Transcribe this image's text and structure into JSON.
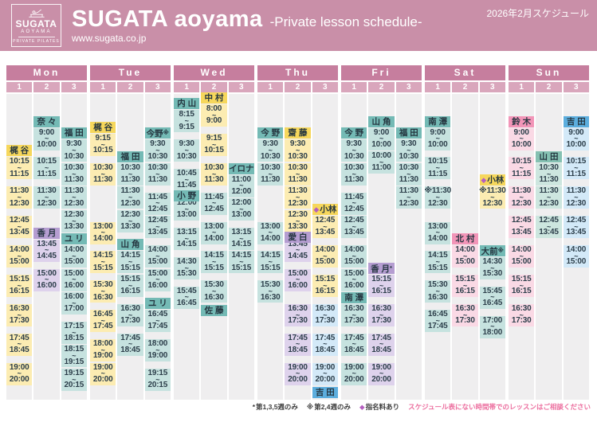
{
  "header": {
    "logo": {
      "brand": "SUGATA",
      "sub": "AOYAMA",
      "tagline": "PRIVATE PILATES"
    },
    "title": "SUGATA aoyama",
    "subtitle": "-Private lesson schedule-",
    "url": "www.sugata.co.jp",
    "period": "2026年2月スケジュール"
  },
  "slot_labels": [
    "1",
    "2",
    "3"
  ],
  "palette": {
    "banner_bg": "#c98fa8",
    "day_header_bg": "#c67e9e",
    "slot_header_bg": "#d9a6bc",
    "column_bg": "#efeeef",
    "time_text": "#2c3e4a",
    "name_text": "#253640",
    "diamond": "#b55fc0",
    "note_pink": "#ec6f9f",
    "groups": {
      "yellow": {
        "header": "#f6d75c",
        "block": "#fcecb2"
      },
      "teal": {
        "header": "#74bab5",
        "block": "#c6e2df"
      },
      "purple": {
        "header": "#b59dd1",
        "block": "#ded2ec"
      },
      "pink": {
        "header": "#f295b8",
        "block": "#fad9e5"
      },
      "blue": {
        "header": "#5caede",
        "block": "#d3e9f8"
      },
      "green": {
        "header": "#85c1b2",
        "block": "#cde6df"
      }
    }
  },
  "days": [
    {
      "label": "Mon",
      "cols": [
        [
          {
            "name": "梶 谷",
            "color": "yellow",
            "blocks": [
              [
                "10:15",
                "11:15"
              ],
              [
                "11:30",
                "12:30"
              ],
              [
                "12:45",
                "13:45"
              ],
              [
                "14:00",
                "15:00"
              ],
              [
                "15:15",
                "16:15"
              ],
              [
                "16:30",
                "17:30"
              ],
              [
                "17:45",
                "18:45"
              ],
              [
                "19:00",
                "20:00"
              ]
            ]
          }
        ],
        [
          {
            "name": "奈 々",
            "color": "teal",
            "blocks": [
              [
                "9:00",
                "10:00"
              ],
              [
                "10:15",
                "11:15"
              ],
              [
                "11:30",
                "12:30"
              ]
            ]
          },
          {
            "name": "香 月",
            "color": "purple",
            "blocks": [
              [
                "13:45",
                "14:45"
              ],
              [
                "15:00",
                "16:00"
              ]
            ]
          }
        ],
        [
          {
            "name": "福 田",
            "color": "teal",
            "blocks": [
              [
                "9:30",
                "10:30"
              ],
              [
                "10:30",
                "11:30"
              ],
              [
                "11:30",
                "12:30"
              ],
              [
                "12:30",
                "13:30"
              ]
            ]
          },
          {
            "name": "ユ リ",
            "color": "teal",
            "blocks": [
              [
                "14:00",
                "15:00"
              ],
              [
                "15:00",
                "16:00"
              ],
              [
                "16:00",
                "17:00"
              ],
              [
                "17:15",
                "18:15"
              ],
              [
                "18:15",
                "19:15"
              ],
              [
                "19:15",
                "20:15"
              ]
            ]
          }
        ]
      ]
    },
    {
      "label": "Tue",
      "cols": [
        [
          {
            "name": "梶 谷",
            "color": "yellow",
            "blocks": [
              [
                "9:15",
                "10:15"
              ],
              [
                "10:30",
                "11:30"
              ],
              [
                "13:00",
                "14:00"
              ],
              [
                "14:15",
                "15:15"
              ],
              [
                "15:30",
                "16:30"
              ],
              [
                "16:45",
                "17:45"
              ],
              [
                "18:00",
                "19:00"
              ],
              [
                "19:00",
                "20:00"
              ]
            ]
          }
        ],
        [
          {
            "name": "福 田",
            "color": "teal",
            "blocks": [
              [
                "10:30",
                "11:30"
              ],
              [
                "11:30",
                "12:30"
              ],
              [
                "12:30",
                "13:30"
              ]
            ]
          },
          {
            "name": "山 角",
            "color": "teal",
            "blocks": [
              [
                "14:15",
                "15:15"
              ],
              [
                "15:15",
                "16:15"
              ],
              [
                "16:30",
                "17:30"
              ],
              [
                "17:45",
                "18:45"
              ]
            ]
          }
        ],
        [
          {
            "name": "今野",
            "suffix": "※",
            "color": "teal",
            "blocks": [
              [
                "9:30",
                "10:30"
              ],
              [
                "10:30",
                "11:30"
              ],
              [
                "11:45",
                "12:45"
              ],
              [
                "12:45",
                "13:45"
              ],
              [
                "14:00",
                "15:00"
              ],
              [
                "15:00",
                "16:00"
              ]
            ]
          },
          {
            "name": "ユ リ",
            "color": "teal",
            "blocks": [
              [
                "16:45",
                "17:45"
              ],
              [
                "18:00",
                "19:00"
              ],
              [
                "19:15",
                "20:15"
              ]
            ]
          }
        ]
      ]
    },
    {
      "label": "Wed",
      "cols": [
        [
          {
            "name": "内 山",
            "color": "teal",
            "blocks": [
              [
                "8:15",
                "9:15"
              ],
              [
                "9:30",
                "10:30"
              ],
              [
                "10:45",
                "11:45"
              ]
            ]
          },
          {
            "name": "小 野",
            "color": "teal",
            "blocks": [
              [
                "12:00",
                "13:00"
              ],
              [
                "13:15",
                "14:15"
              ],
              [
                "14:30",
                "15:30"
              ],
              [
                "15:45",
                "16:45"
              ]
            ]
          }
        ],
        [
          {
            "name": "中 村",
            "color": "yellow",
            "blocks": [
              [
                "8:00",
                "9:00"
              ],
              [
                "9:15",
                "10:15"
              ],
              [
                "10:30",
                "11:30"
              ]
            ]
          },
          {
            "name": "佐 藤",
            "color": "teal",
            "name_pos": "below",
            "blocks": [
              [
                "11:45",
                "12:45"
              ],
              [
                "13:00",
                "14:00"
              ],
              [
                "14:15",
                "15:15"
              ],
              [
                "15:30",
                "16:30"
              ]
            ]
          }
        ],
        [
          {
            "name": "イロナ",
            "color": "teal",
            "blocks": [
              [
                "11:00",
                "12:00"
              ],
              [
                "12:00",
                "13:00"
              ],
              [
                "13:15",
                "14:15"
              ],
              [
                "14:15",
                "15:15"
              ]
            ]
          }
        ]
      ]
    },
    {
      "label": "Thu",
      "cols": [
        [
          {
            "name": "今 野",
            "color": "teal",
            "blocks": [
              [
                "9:30",
                "10:30"
              ],
              [
                "10:30",
                "11:30"
              ],
              [
                "13:00",
                "14:00"
              ],
              [
                "14:15",
                "15:15"
              ],
              [
                "15:30",
                "16:30"
              ]
            ]
          }
        ],
        [
          {
            "name": "齋 藤",
            "color": "yellow",
            "blocks": [
              [
                "9:30",
                "10:30"
              ],
              [
                "10:30",
                "11:30"
              ],
              [
                "11:30",
                "12:30"
              ],
              [
                "12:30",
                "13:30"
              ]
            ]
          },
          {
            "name": "愛 白",
            "color": "purple",
            "blocks": [
              [
                "13:45",
                "14:45"
              ],
              [
                "15:00",
                "16:00"
              ],
              [
                "16:30",
                "17:30"
              ],
              [
                "17:45",
                "18:45"
              ],
              [
                "19:00",
                "20:00"
              ]
            ]
          }
        ],
        [
          {
            "name": "小林",
            "prefix": "◆",
            "color": "yellow",
            "blocks": [
              [
                "12:45",
                "13:45"
              ],
              [
                "14:00",
                "15:00"
              ],
              [
                "15:15",
                "16:15"
              ]
            ]
          },
          {
            "name": "吉 田",
            "color": "blue",
            "name_pos": "below",
            "blocks": [
              [
                "16:30",
                "17:30"
              ],
              [
                "17:45",
                "18:45"
              ],
              [
                "19:00",
                "20:00"
              ]
            ]
          }
        ]
      ]
    },
    {
      "label": "Fri",
      "cols": [
        [
          {
            "name": "今 野",
            "color": "teal",
            "blocks": [
              [
                "9:30",
                "10:30"
              ],
              [
                "10:30",
                "11:30"
              ],
              [
                "11:45",
                "12:45"
              ],
              [
                "12:45",
                "13:45"
              ],
              [
                "14:00",
                "15:00"
              ],
              [
                "15:00",
                "16:00"
              ]
            ]
          },
          {
            "name": "南 澤",
            "color": "teal",
            "blocks": [
              [
                "16:30",
                "17:30"
              ],
              [
                "17:45",
                "18:45"
              ],
              [
                "19:00",
                "20:00"
              ]
            ]
          }
        ],
        [
          {
            "name": "山 角",
            "color": "teal",
            "blocks": [
              [
                "9:00",
                "10:00"
              ],
              [
                "10:00",
                "11:00"
              ]
            ]
          },
          {
            "name": "香 月",
            "suffix": "*",
            "color": "purple",
            "blocks": [
              [
                "15:15",
                "16:15"
              ],
              [
                "16:30",
                "17:30"
              ],
              [
                "17:45",
                "18:45"
              ],
              [
                "19:00",
                "20:00"
              ]
            ]
          }
        ],
        [
          {
            "name": "福 田",
            "color": "teal",
            "blocks": [
              [
                "9:30",
                "10:30"
              ],
              [
                "10:30",
                "11:30"
              ],
              [
                "11:30",
                "12:30"
              ]
            ]
          }
        ]
      ]
    },
    {
      "label": "Sat",
      "cols": [
        [
          {
            "name": "南 澤",
            "color": "teal",
            "blocks": [
              [
                "9:00",
                "10:00"
              ],
              [
                "10:15",
                "11:15"
              ],
              [
                "※11:30",
                "12:30"
              ],
              [
                "13:00",
                "14:00"
              ],
              [
                "14:15",
                "15:15"
              ],
              [
                "15:30",
                "16:30"
              ],
              [
                "16:45",
                "17:45"
              ]
            ]
          }
        ],
        [
          {
            "name": "北 村",
            "color": "pink",
            "blocks": [
              [
                "14:00",
                "15:00"
              ],
              [
                "15:15",
                "16:15"
              ],
              [
                "16:30",
                "17:30"
              ]
            ]
          }
        ],
        [
          {
            "name": "小林",
            "prefix": "◆",
            "color": "yellow",
            "blocks": [
              [
                "※11:30",
                "12:30"
              ]
            ]
          },
          {
            "name": "大前",
            "suffix": "※",
            "color": "teal",
            "blocks": [
              [
                "14:30",
                "15:30"
              ],
              [
                "15:45",
                "16:45"
              ],
              [
                "17:00",
                "18:00"
              ]
            ]
          }
        ]
      ]
    },
    {
      "label": "Sun",
      "cols": [
        [
          {
            "name": "鈴 木",
            "color": "pink",
            "blocks": [
              [
                "9:00",
                "10:00"
              ],
              [
                "10:15",
                "11:15"
              ],
              [
                "11:30",
                "12:30"
              ],
              [
                "12:45",
                "13:45"
              ],
              [
                "14:00",
                "15:00"
              ],
              [
                "15:15",
                "16:15"
              ],
              [
                "16:30",
                "17:30"
              ]
            ]
          }
        ],
        [
          {
            "name": "山 田",
            "color": "green",
            "blocks": [
              [
                "10:30",
                "11:30"
              ],
              [
                "11:30",
                "12:30"
              ],
              [
                "12:45",
                "13:45"
              ]
            ]
          }
        ],
        [
          {
            "name": "吉 田",
            "color": "blue",
            "blocks": [
              [
                "9:00",
                "10:00"
              ],
              [
                "10:15",
                "11:15"
              ],
              [
                "11:30",
                "12:30"
              ],
              [
                "12:45",
                "13:45"
              ],
              [
                "14:00",
                "15:00"
              ]
            ]
          }
        ]
      ]
    }
  ],
  "footnotes": [
    {
      "marker": "*",
      "text": "第1,3,5週のみ"
    },
    {
      "marker": "※",
      "text": "第2,4週のみ"
    },
    {
      "marker": "◆",
      "text": "指名料あり",
      "marker_color": "diamond"
    },
    {
      "text": "スケジュール表にない時間帯でのレッスンはご相談ください",
      "color": "pink"
    }
  ]
}
